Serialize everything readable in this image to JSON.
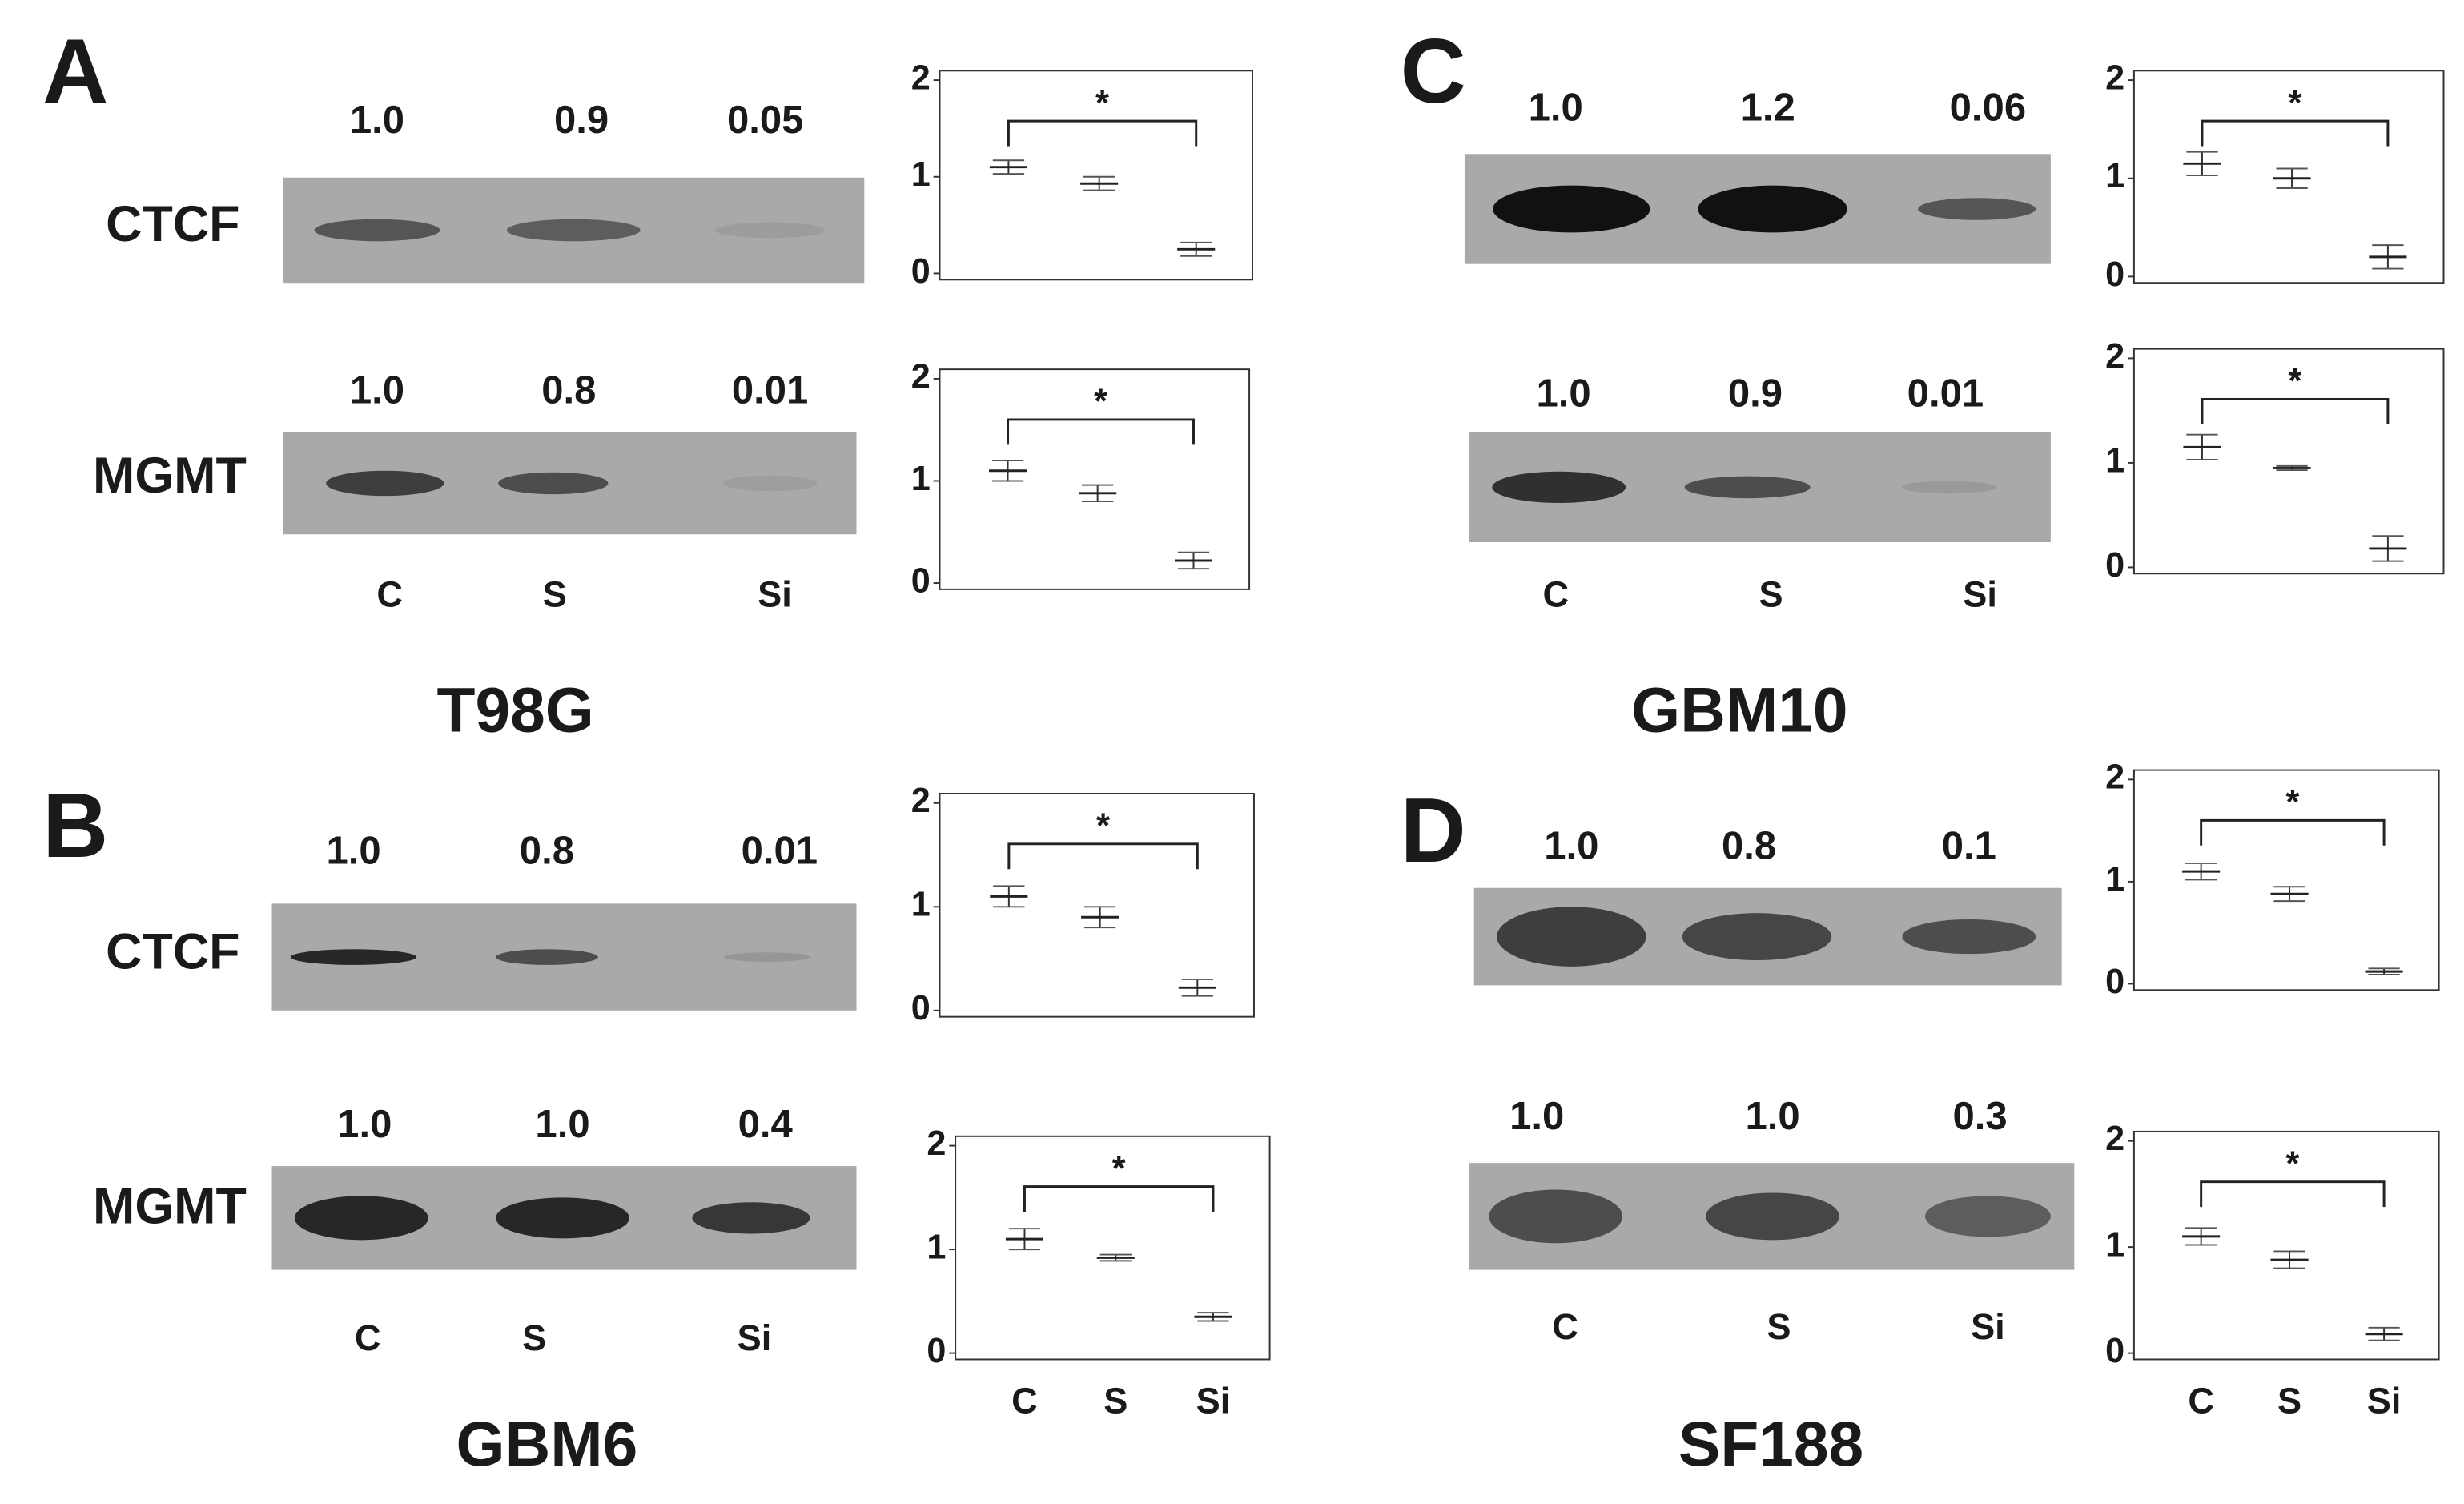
{
  "panels": [
    {
      "label": "A",
      "cell_line": "T98G",
      "lanes": [
        "C",
        "S",
        "Si"
      ],
      "blots": [
        {
          "protein": "CTCF",
          "quant": [
            "1.0",
            "0.9",
            "0.05"
          ]
        },
        {
          "protein": "MGMT",
          "quant": [
            "1.0",
            "0.8",
            "0.01"
          ]
        }
      ]
    },
    {
      "label": "B",
      "cell_line": "GBM6",
      "lanes": [
        "C",
        "S",
        "Si"
      ],
      "blots": [
        {
          "protein": "CTCF",
          "quant": [
            "1.0",
            "0.8",
            "0.01"
          ]
        },
        {
          "protein": "MGMT",
          "quant": [
            "1.0",
            "1.0",
            "0.4"
          ]
        }
      ]
    },
    {
      "label": "C",
      "cell_line": "GBM10",
      "lanes": [
        "C",
        "S",
        "Si"
      ],
      "blots": [
        {
          "quant": [
            "1.0",
            "1.2",
            "0.06"
          ]
        },
        {
          "quant": [
            "1.0",
            "0.9",
            "0.01"
          ]
        }
      ]
    },
    {
      "label": "D",
      "cell_line": "SF188",
      "lanes": [
        "C",
        "S",
        "Si"
      ],
      "blots": [
        {
          "quant": [
            "1.0",
            "0.8",
            "0.1"
          ]
        },
        {
          "quant": [
            "1.0",
            "1.0",
            "0.3"
          ]
        }
      ]
    }
  ],
  "chart_data": [
    {
      "type": "errorbar",
      "categories": [
        null,
        null,
        null
      ],
      "values": [
        1.1,
        0.93,
        0.25
      ],
      "errors": [
        0.07,
        0.07,
        0.07
      ],
      "ylim": [
        0,
        2
      ],
      "yticks": [
        0,
        1,
        2
      ],
      "annotation": "*"
    },
    {
      "type": "errorbar",
      "categories": [
        null,
        null,
        null
      ],
      "values": [
        1.1,
        0.88,
        0.22
      ],
      "errors": [
        0.1,
        0.08,
        0.08
      ],
      "ylim": [
        0,
        2
      ],
      "yticks": [
        0,
        1,
        2
      ],
      "annotation": "*"
    },
    {
      "type": "errorbar",
      "categories": [
        null,
        null,
        null
      ],
      "values": [
        1.1,
        0.9,
        0.22
      ],
      "errors": [
        0.1,
        0.1,
        0.08
      ],
      "ylim": [
        0,
        2
      ],
      "yticks": [
        0,
        1,
        2
      ],
      "annotation": "*"
    },
    {
      "type": "errorbar",
      "categories": [
        "C",
        "S",
        "Si"
      ],
      "values": [
        1.1,
        0.92,
        0.35
      ],
      "errors": [
        0.1,
        0.03,
        0.04
      ],
      "ylim": [
        0,
        2
      ],
      "yticks": [
        0,
        1,
        2
      ],
      "annotation": "*"
    },
    {
      "type": "errorbar",
      "categories": [
        null,
        null,
        null
      ],
      "values": [
        1.15,
        1.0,
        0.2
      ],
      "errors": [
        0.12,
        0.1,
        0.12
      ],
      "ylim": [
        0,
        2
      ],
      "yticks": [
        0,
        1,
        2
      ],
      "annotation": "*"
    },
    {
      "type": "errorbar",
      "categories": [
        null,
        null,
        null
      ],
      "values": [
        1.15,
        0.95,
        0.18
      ],
      "errors": [
        0.12,
        0.02,
        0.12
      ],
      "ylim": [
        0,
        2
      ],
      "yticks": [
        0,
        1,
        2
      ],
      "annotation": "*"
    },
    {
      "type": "errorbar",
      "categories": [
        null,
        null,
        null
      ],
      "values": [
        1.1,
        0.88,
        0.12
      ],
      "errors": [
        0.08,
        0.07,
        0.03
      ],
      "ylim": [
        0,
        2
      ],
      "yticks": [
        0,
        1,
        2
      ],
      "annotation": "*"
    },
    {
      "type": "errorbar",
      "categories": [
        "C",
        "S",
        "Si"
      ],
      "values": [
        1.1,
        0.88,
        0.18
      ],
      "errors": [
        0.08,
        0.08,
        0.06
      ],
      "ylim": [
        0,
        2
      ],
      "yticks": [
        0,
        1,
        2
      ],
      "annotation": "*"
    }
  ]
}
